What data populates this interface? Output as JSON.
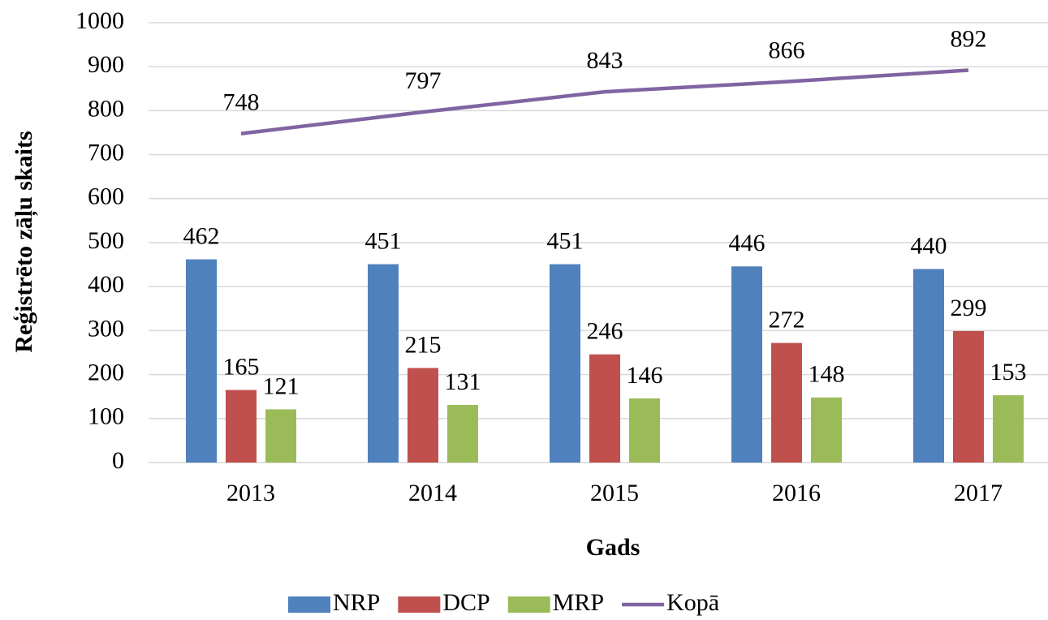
{
  "chart_data": {
    "type": "bar",
    "xlabel": "Gads",
    "ylabel": "Reģistrēto zāļu skaits",
    "categories": [
      "2013",
      "2014",
      "2015",
      "2016",
      "2017"
    ],
    "series": [
      {
        "name": "NRP",
        "color": "#4f81bd",
        "values": [
          462,
          451,
          451,
          446,
          440
        ]
      },
      {
        "name": "DCP",
        "color": "#c0504d",
        "values": [
          165,
          215,
          246,
          272,
          299
        ]
      },
      {
        "name": "MRP",
        "color": "#9bbb59",
        "values": [
          121,
          131,
          146,
          148,
          153
        ]
      },
      {
        "name": "Kopā",
        "color": "#8064a2",
        "type": "line",
        "values": [
          748,
          797,
          843,
          866,
          892
        ]
      }
    ],
    "ylim": [
      0,
      1000
    ],
    "yticks": [
      0,
      100,
      200,
      300,
      400,
      500,
      600,
      700,
      800,
      900,
      1000
    ],
    "grid": true,
    "legend": "bottom"
  }
}
